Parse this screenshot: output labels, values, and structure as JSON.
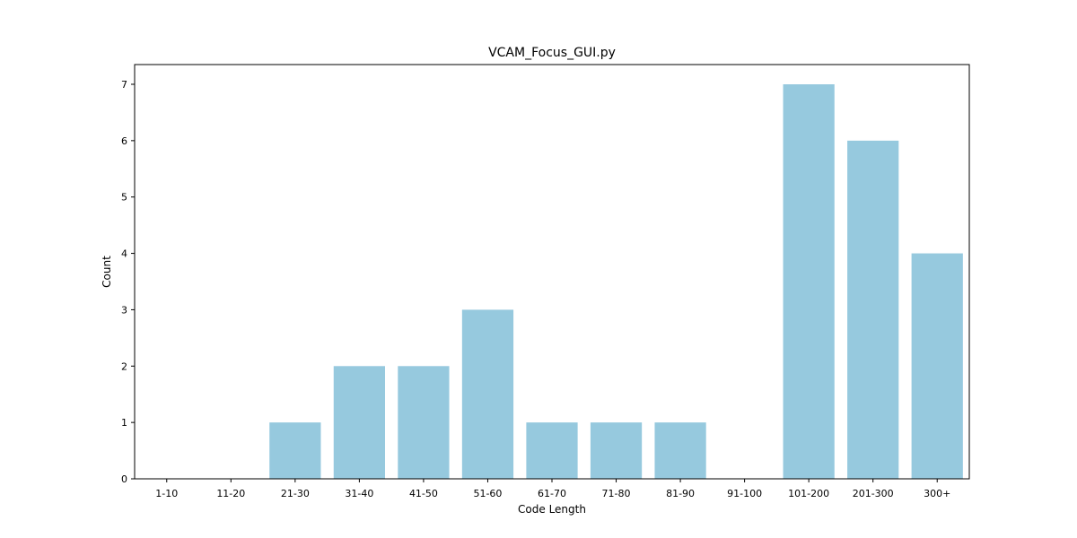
{
  "chart_data": {
    "type": "bar",
    "title": "VCAM_Focus_GUI.py",
    "xlabel": "Code Length",
    "ylabel": "Count",
    "categories": [
      "1-10",
      "11-20",
      "21-30",
      "31-40",
      "41-50",
      "51-60",
      "61-70",
      "71-80",
      "81-90",
      "91-100",
      "101-200",
      "201-300",
      "300+"
    ],
    "values": [
      0,
      0,
      1,
      2,
      2,
      3,
      1,
      1,
      1,
      0,
      7,
      6,
      4
    ],
    "yticks": [
      0,
      1,
      2,
      3,
      4,
      5,
      6,
      7
    ],
    "ylim": [
      0,
      7.35
    ],
    "grid": false,
    "bar_color": "#96c9de"
  }
}
